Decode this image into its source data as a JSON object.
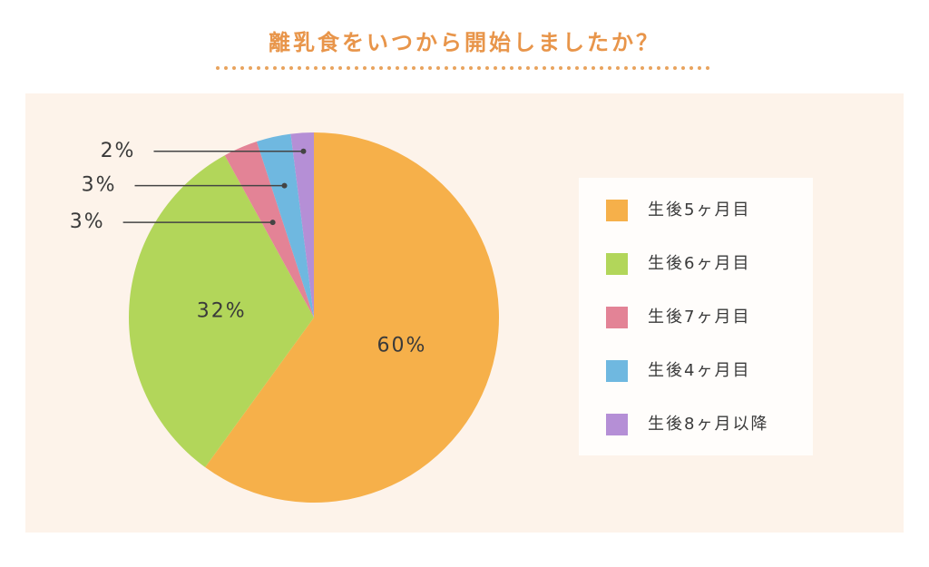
{
  "chart_data": {
    "type": "pie",
    "title": "離乳食をいつから開始しましたか？",
    "categories": [
      "生後5ヶ月目",
      "生後6ヶ月目",
      "生後7ヶ月目",
      "生後4ヶ月目",
      "生後8ヶ月以降"
    ],
    "values": [
      60,
      32,
      3,
      3,
      2
    ],
    "value_labels": [
      "60%",
      "32%",
      "3%",
      "3%",
      "2%"
    ],
    "colors": [
      "#f6b04a",
      "#b2d65a",
      "#e38396",
      "#6fb8e0",
      "#b58fd6"
    ],
    "legend": "right"
  }
}
